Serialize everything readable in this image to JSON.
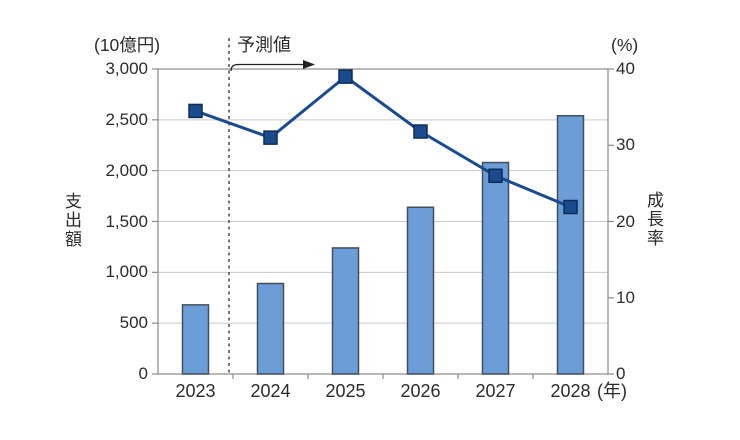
{
  "chart_data": {
    "type": "combo",
    "title": "",
    "categories": [
      "2023",
      "2024",
      "2025",
      "2026",
      "2027",
      "2028"
    ],
    "series": [
      {
        "name": "支出額",
        "type": "bar",
        "axis": "left",
        "values": [
          680,
          890,
          1240,
          1640,
          2080,
          2540
        ]
      },
      {
        "name": "成長率",
        "type": "line",
        "axis": "right",
        "marker": "square",
        "values": [
          34.5,
          31.0,
          39.0,
          31.8,
          26.0,
          21.9
        ]
      }
    ],
    "left_axis": {
      "title": "支出額",
      "unit": "(10億円)",
      "min": 0,
      "max": 3000,
      "tick_values": [
        0,
        500,
        1000,
        1500,
        2000,
        2500,
        3000
      ],
      "tick_labels": [
        "0",
        "500",
        "1,000",
        "1,500",
        "2,000",
        "2,500",
        "3,000"
      ]
    },
    "right_axis": {
      "title": "成長率",
      "unit": "(%)",
      "min": 0,
      "max": 40,
      "tick_values": [
        0,
        10,
        20,
        30,
        40
      ],
      "tick_labels": [
        "0",
        "10",
        "20",
        "30",
        "40"
      ]
    },
    "x_axis": {
      "unit": "(年)"
    },
    "annotation": {
      "label": "予測値",
      "forecast_start_index": 1
    },
    "grid": "horizontal",
    "legend": "none"
  },
  "colors": {
    "background": "#ffffff",
    "grid": "#c9c9c9",
    "plot_border": "#8a8a8a",
    "text": "#2b2b2b",
    "bar_fill": "#6b9ed8",
    "bar_border": "#454e57",
    "line": "#1b4b8f",
    "marker_fill": "#1b4b8f",
    "marker_border": "#0f2c56",
    "dashed_divider": "#4a4a4a",
    "arrow": "#222222"
  }
}
